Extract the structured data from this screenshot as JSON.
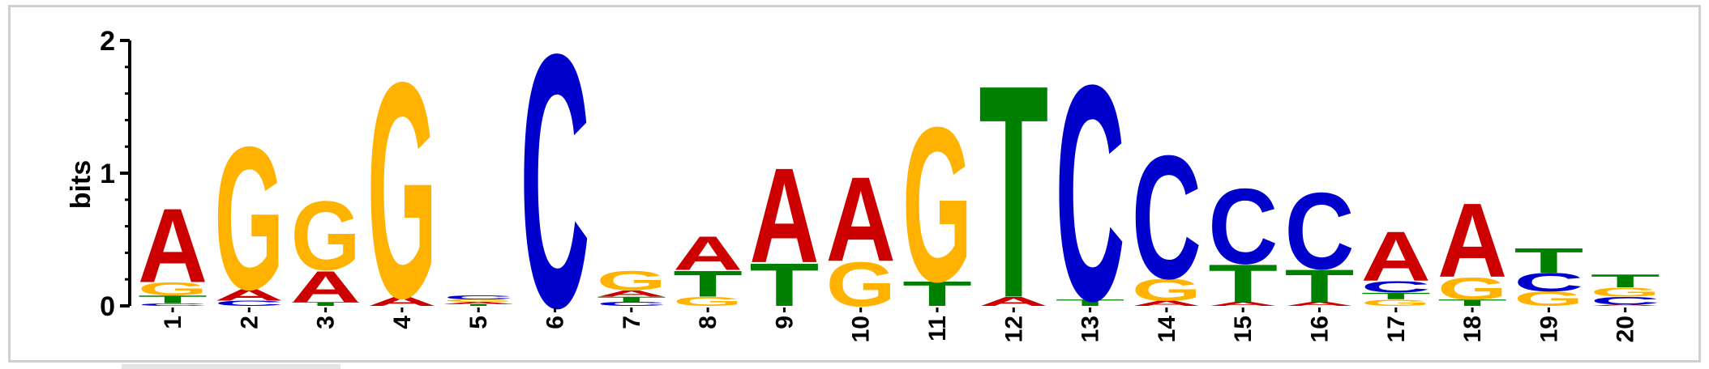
{
  "chart_data": {
    "type": "sequence-logo",
    "ylabel": "bits",
    "ylim": [
      0,
      2
    ],
    "yticks": [
      "0",
      "1",
      "2"
    ],
    "colors": {
      "A": "#cc0000",
      "C": "#0000cc",
      "G": "#ffb200",
      "T": "#008000"
    },
    "positions": [
      {
        "label": "1",
        "letters": [
          {
            "l": "C",
            "h": 0.02
          },
          {
            "l": "T",
            "h": 0.06
          },
          {
            "l": "G",
            "h": 0.1
          },
          {
            "l": "A",
            "h": 0.57
          }
        ]
      },
      {
        "label": "2",
        "letters": [
          {
            "l": "C",
            "h": 0.04
          },
          {
            "l": "A",
            "h": 0.09
          },
          {
            "l": "G",
            "h": 1.1
          }
        ]
      },
      {
        "label": "3",
        "letters": [
          {
            "l": "T",
            "h": 0.03
          },
          {
            "l": "A",
            "h": 0.24
          },
          {
            "l": "G",
            "h": 0.53
          }
        ]
      },
      {
        "label": "4",
        "letters": [
          {
            "l": "A",
            "h": 0.07
          },
          {
            "l": "G",
            "h": 1.66
          }
        ]
      },
      {
        "label": "5",
        "letters": [
          {
            "l": "T",
            "h": 0.015
          },
          {
            "l": "A",
            "h": 0.015
          },
          {
            "l": "G",
            "h": 0.02
          },
          {
            "l": "C",
            "h": 0.03
          }
        ]
      },
      {
        "label": "6",
        "letters": [
          {
            "l": "C",
            "h": 1.95
          }
        ]
      },
      {
        "label": "7",
        "letters": [
          {
            "l": "C",
            "h": 0.03
          },
          {
            "l": "T",
            "h": 0.04
          },
          {
            "l": "A",
            "h": 0.05
          },
          {
            "l": "G",
            "h": 0.15
          }
        ]
      },
      {
        "label": "8",
        "letters": [
          {
            "l": "G",
            "h": 0.07
          },
          {
            "l": "T",
            "h": 0.2
          },
          {
            "l": "A",
            "h": 0.26
          }
        ]
      },
      {
        "label": "9",
        "letters": [
          {
            "l": "T",
            "h": 0.33
          },
          {
            "l": "A",
            "h": 0.73
          }
        ]
      },
      {
        "label": "10",
        "letters": [
          {
            "l": "G",
            "h": 0.34
          },
          {
            "l": "A",
            "h": 0.65
          }
        ]
      },
      {
        "label": "11",
        "letters": [
          {
            "l": "T",
            "h": 0.19
          },
          {
            "l": "G",
            "h": 1.19
          }
        ]
      },
      {
        "label": "12",
        "letters": [
          {
            "l": "A",
            "h": 0.07
          },
          {
            "l": "T",
            "h": 1.64
          }
        ]
      },
      {
        "label": "13",
        "letters": [
          {
            "l": "T",
            "h": 0.05
          },
          {
            "l": "C",
            "h": 1.66
          }
        ]
      },
      {
        "label": "14",
        "letters": [
          {
            "l": "A",
            "h": 0.04
          },
          {
            "l": "G",
            "h": 0.17
          },
          {
            "l": "C",
            "h": 0.95
          }
        ]
      },
      {
        "label": "15",
        "letters": [
          {
            "l": "A",
            "h": 0.03
          },
          {
            "l": "T",
            "h": 0.29
          },
          {
            "l": "C",
            "h": 0.58
          }
        ]
      },
      {
        "label": "16",
        "letters": [
          {
            "l": "A",
            "h": 0.03
          },
          {
            "l": "T",
            "h": 0.25
          },
          {
            "l": "C",
            "h": 0.59
          }
        ]
      },
      {
        "label": "17",
        "letters": [
          {
            "l": "G",
            "h": 0.05
          },
          {
            "l": "T",
            "h": 0.05
          },
          {
            "l": "C",
            "h": 0.09
          },
          {
            "l": "A",
            "h": 0.38
          }
        ]
      },
      {
        "label": "18",
        "letters": [
          {
            "l": "T",
            "h": 0.05
          },
          {
            "l": "G",
            "h": 0.17
          },
          {
            "l": "A",
            "h": 0.57
          }
        ]
      },
      {
        "label": "19",
        "letters": [
          {
            "l": "G",
            "h": 0.11
          },
          {
            "l": "C",
            "h": 0.14
          },
          {
            "l": "T",
            "h": 0.19
          }
        ]
      },
      {
        "label": "20",
        "letters": [
          {
            "l": "A",
            "h": 0.01
          },
          {
            "l": "C",
            "h": 0.06
          },
          {
            "l": "G",
            "h": 0.07
          },
          {
            "l": "T",
            "h": 0.1
          }
        ]
      }
    ]
  }
}
